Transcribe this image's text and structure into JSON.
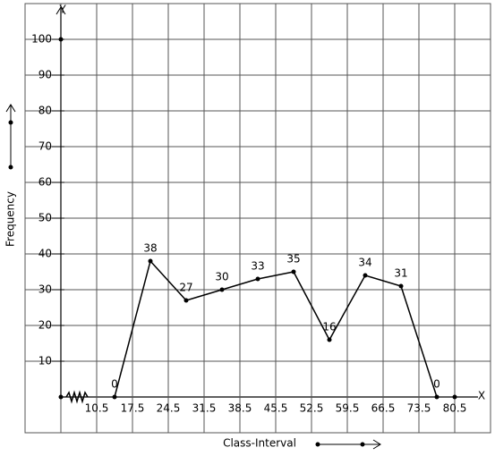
{
  "chart_data": {
    "type": "line",
    "x_axis_symbol": "X",
    "y_axis_symbol": "Y",
    "x_label": "Class-Interval",
    "y_label": "Frequency",
    "x": [
      14,
      21,
      28,
      35,
      42,
      49,
      56,
      63,
      70,
      77
    ],
    "series": [
      {
        "color": "#000000",
        "values": [
          0,
          38,
          27,
          30,
          33,
          35,
          16,
          34,
          31,
          0
        ]
      }
    ],
    "xlim": [
      3.5,
      87.5
    ],
    "ylim": [
      0,
      110
    ],
    "xticks": [
      10.5,
      17.5,
      24.5,
      31.5,
      38.5,
      45.5,
      52.5,
      59.5,
      66.5,
      73.5,
      80.5
    ],
    "yticks": [
      10,
      20,
      30,
      40,
      50,
      60,
      70,
      80,
      90,
      100
    ],
    "grid": true
  }
}
